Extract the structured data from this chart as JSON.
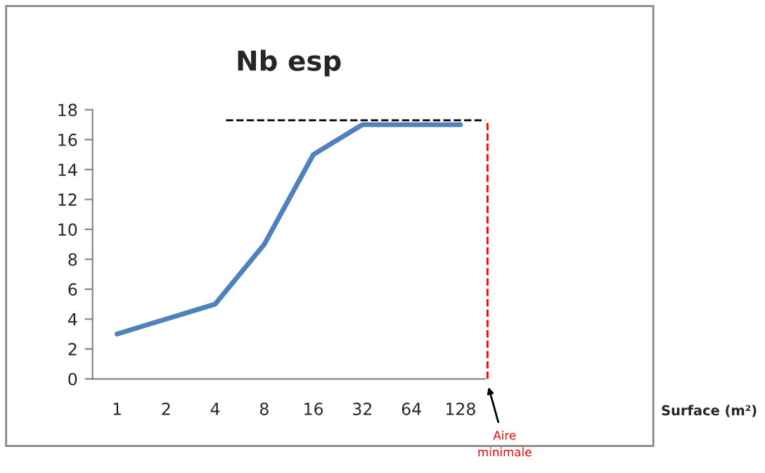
{
  "chart_data": {
    "type": "line",
    "title": "Nb esp",
    "categories": [
      "1",
      "2",
      "4",
      "8",
      "16",
      "32",
      "64",
      "128"
    ],
    "series": [
      {
        "color": "#4f81bd",
        "values": [
          3,
          4,
          5,
          9,
          15,
          17,
          17,
          17
        ]
      }
    ],
    "ylim": [
      0,
      18
    ],
    "yticks": [
      0,
      2,
      4,
      6,
      8,
      10,
      12,
      14,
      16,
      18
    ],
    "grid": false,
    "marker": "none",
    "line_style": "solid",
    "ref_lines": [
      {
        "axis": "y",
        "value": 17.3,
        "color": "#000000",
        "line_style": "dashed"
      }
    ],
    "annotations": [
      "Aire minimale",
      "Surface (m²)"
    ]
  }
}
